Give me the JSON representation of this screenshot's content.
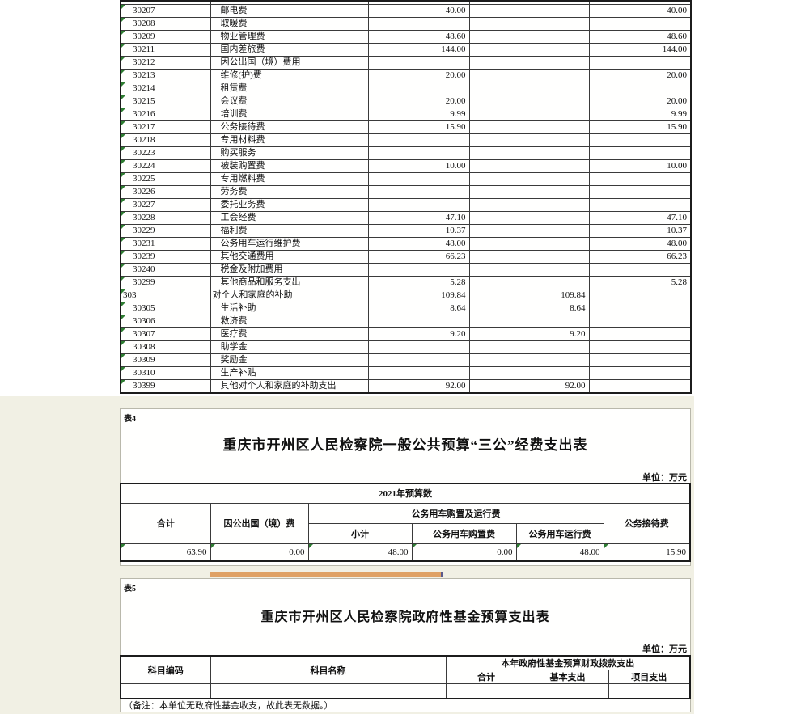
{
  "page": {
    "background": "#ffffff",
    "panel_background": "#f1f0e4",
    "block_background": "#fffffe",
    "grid_color": "#3a3a3a",
    "error_triangle_green": "#2e7d32",
    "orange_bar_color": "#dfa164"
  },
  "budget_table": {
    "rows": [
      {
        "code": "30207",
        "name": "邮电费",
        "v1": "40.00",
        "v2": "",
        "v3": "40.00",
        "group": false
      },
      {
        "code": "30208",
        "name": "取暖费",
        "v1": "",
        "v2": "",
        "v3": "",
        "group": false
      },
      {
        "code": "30209",
        "name": "物业管理费",
        "v1": "48.60",
        "v2": "",
        "v3": "48.60",
        "group": false
      },
      {
        "code": "30211",
        "name": "国内差旅费",
        "v1": "144.00",
        "v2": "",
        "v3": "144.00",
        "group": false
      },
      {
        "code": "30212",
        "name": "因公出国（境）费用",
        "v1": "",
        "v2": "",
        "v3": "",
        "group": false
      },
      {
        "code": "30213",
        "name": "维修(护)费",
        "v1": "20.00",
        "v2": "",
        "v3": "20.00",
        "group": false
      },
      {
        "code": "30214",
        "name": "租赁费",
        "v1": "",
        "v2": "",
        "v3": "",
        "group": false
      },
      {
        "code": "30215",
        "name": "会议费",
        "v1": "20.00",
        "v2": "",
        "v3": "20.00",
        "group": false
      },
      {
        "code": "30216",
        "name": "培训费",
        "v1": "9.99",
        "v2": "",
        "v3": "9.99",
        "group": false
      },
      {
        "code": "30217",
        "name": "公务接待费",
        "v1": "15.90",
        "v2": "",
        "v3": "15.90",
        "group": false
      },
      {
        "code": "30218",
        "name": "专用材料费",
        "v1": "",
        "v2": "",
        "v3": "",
        "group": false
      },
      {
        "code": "30223",
        "name": "购买服务",
        "v1": "",
        "v2": "",
        "v3": "",
        "group": false
      },
      {
        "code": "30224",
        "name": "被装购置费",
        "v1": "10.00",
        "v2": "",
        "v3": "10.00",
        "group": false
      },
      {
        "code": "30225",
        "name": "专用燃料费",
        "v1": "",
        "v2": "",
        "v3": "",
        "group": false
      },
      {
        "code": "30226",
        "name": "劳务费",
        "v1": "",
        "v2": "",
        "v3": "",
        "group": false
      },
      {
        "code": "30227",
        "name": "委托业务费",
        "v1": "",
        "v2": "",
        "v3": "",
        "group": false
      },
      {
        "code": "30228",
        "name": "工会经费",
        "v1": "47.10",
        "v2": "",
        "v3": "47.10",
        "group": false
      },
      {
        "code": "30229",
        "name": "福利费",
        "v1": "10.37",
        "v2": "",
        "v3": "10.37",
        "group": false
      },
      {
        "code": "30231",
        "name": "公务用车运行维护费",
        "v1": "48.00",
        "v2": "",
        "v3": "48.00",
        "group": false
      },
      {
        "code": "30239",
        "name": "其他交通费用",
        "v1": "66.23",
        "v2": "",
        "v3": "66.23",
        "group": false
      },
      {
        "code": "30240",
        "name": "税金及附加费用",
        "v1": "",
        "v2": "",
        "v3": "",
        "group": false
      },
      {
        "code": "30299",
        "name": "其他商品和服务支出",
        "v1": "5.28",
        "v2": "",
        "v3": "5.28",
        "group": false
      },
      {
        "code": "303",
        "name": "对个人和家庭的补助",
        "v1": "109.84",
        "v2": "109.84",
        "v3": "",
        "group": true
      },
      {
        "code": "30305",
        "name": "生活补助",
        "v1": "8.64",
        "v2": "8.64",
        "v3": "",
        "group": false
      },
      {
        "code": "30306",
        "name": "救济费",
        "v1": "",
        "v2": "",
        "v3": "",
        "group": false
      },
      {
        "code": "30307",
        "name": "医疗费",
        "v1": "9.20",
        "v2": "9.20",
        "v3": "",
        "group": false
      },
      {
        "code": "30308",
        "name": "助学金",
        "v1": "",
        "v2": "",
        "v3": "",
        "group": false
      },
      {
        "code": "30309",
        "name": "奖励金",
        "v1": "",
        "v2": "",
        "v3": "",
        "group": false
      },
      {
        "code": "30310",
        "name": "生产补贴",
        "v1": "",
        "v2": "",
        "v3": "",
        "group": false
      },
      {
        "code": "30399",
        "name": "其他对个人和家庭的补助支出",
        "v1": "92.00",
        "v2": "92.00",
        "v3": "",
        "group": false
      }
    ]
  },
  "table4": {
    "label": "表4",
    "title": "重庆市开州区人民检察院一般公共预算“三公”经费支出表",
    "unit": "单位：万元",
    "year_header": "2021年预算数",
    "col_total": "合计",
    "col_abroad": "因公出国（境）费",
    "col_vehicle_group": "公务用车购置及运行费",
    "col_subtotal": "小计",
    "col_purchase": "公务用车购置费",
    "col_operation": "公务用车运行费",
    "col_reception": "公务接待费",
    "values": {
      "total": "63.90",
      "abroad": "0.00",
      "subtotal": "48.00",
      "purchase": "0.00",
      "operation": "48.00",
      "reception": "15.90"
    }
  },
  "table5": {
    "label": "表5",
    "title": "重庆市开州区人民检察院政府性基金预算支出表",
    "unit": "单位：万元",
    "col_code": "科目编码",
    "col_name": "科目名称",
    "col_group": "本年政府性基金预算财政拨款支出",
    "col_total": "合计",
    "col_basic": "基本支出",
    "col_project": "项目支出",
    "note": "（备注：本单位无政府性基金收支，故此表无数据。）"
  }
}
